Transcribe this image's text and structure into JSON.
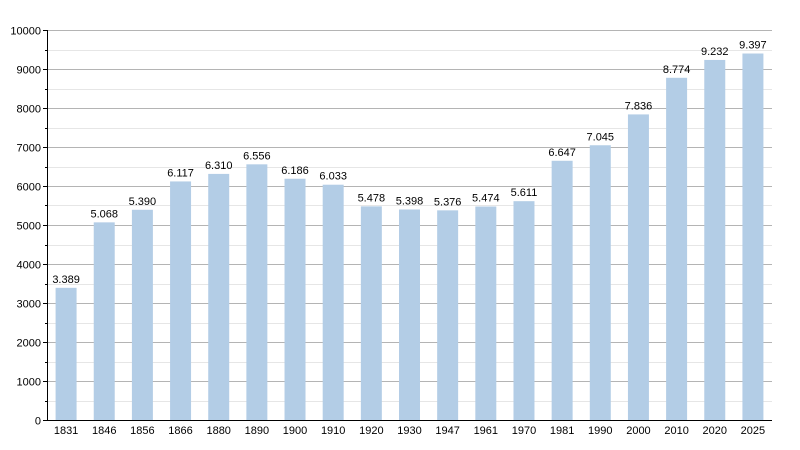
{
  "chart_data": {
    "type": "bar",
    "categories": [
      "1831",
      "1846",
      "1856",
      "1866",
      "1880",
      "1890",
      "1900",
      "1910",
      "1920",
      "1930",
      "1947",
      "1961",
      "1970",
      "1981",
      "1990",
      "2000",
      "2010",
      "2020",
      "2025"
    ],
    "values": [
      3389,
      5068,
      5390,
      6117,
      6310,
      6556,
      6186,
      6033,
      5478,
      5398,
      5376,
      5474,
      5611,
      6647,
      7045,
      7836,
      8774,
      9232,
      9397
    ],
    "value_labels": [
      "3.389",
      "5.068",
      "5.390",
      "6.117",
      "6.310",
      "6.556",
      "6.186",
      "6.033",
      "5.478",
      "5.398",
      "5.376",
      "5.474",
      "5.611",
      "6.647",
      "7.045",
      "7.836",
      "8.774",
      "9.232",
      "9.397"
    ],
    "yticks": [
      "0",
      "1000",
      "2000",
      "3000",
      "4000",
      "5000",
      "6000",
      "7000",
      "8000",
      "9000",
      "10000"
    ],
    "ylim": [
      0,
      10000
    ],
    "grid": true,
    "bar_color": "#b3cde6",
    "title": "",
    "xlabel": "",
    "ylabel": ""
  }
}
